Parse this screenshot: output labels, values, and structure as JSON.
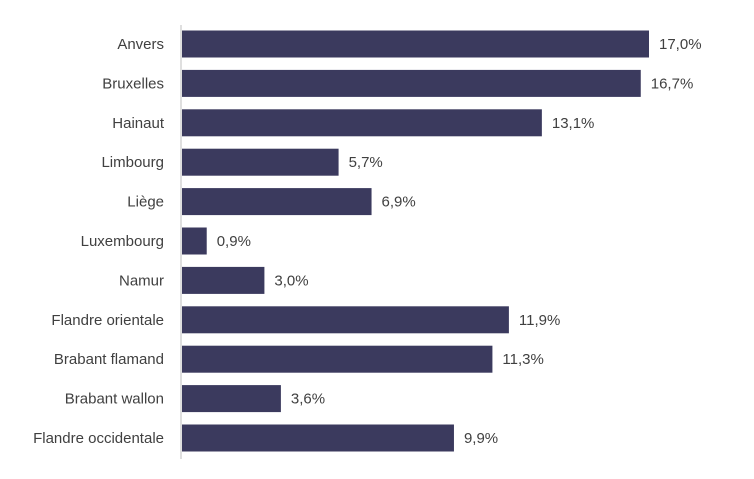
{
  "chart_data": {
    "type": "bar",
    "orientation": "horizontal",
    "title": "",
    "xlabel": "",
    "ylabel": "",
    "grid": false,
    "legend": "none",
    "xlim": [
      0,
      17.0
    ],
    "color": "#3b3a5e",
    "categories": [
      "Anvers",
      "Bruxelles",
      "Hainaut",
      "Limbourg",
      "Liège",
      "Luxembourg",
      "Namur",
      "Flandre orientale",
      "Brabant flamand",
      "Brabant wallon",
      "Flandre occidentale"
    ],
    "values": [
      17.0,
      16.7,
      13.1,
      5.7,
      6.9,
      0.9,
      3.0,
      11.9,
      11.3,
      3.6,
      9.9
    ],
    "data_labels": [
      "17,0%",
      "16,7%",
      "13,1%",
      "5,7%",
      "6,9%",
      "0,9%",
      "3,0%",
      "11,9%",
      "11,3%",
      "3,6%",
      "9,9%"
    ]
  }
}
